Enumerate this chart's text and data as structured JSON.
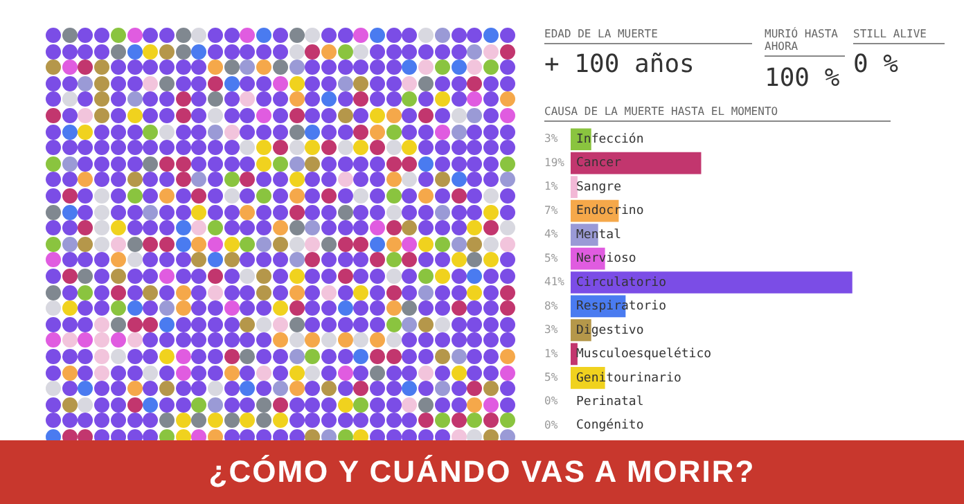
{
  "chart_data": {
    "type": "bar",
    "orientation": "horizontal",
    "title": "¿CÓMO Y CUÁNDO VAS A MORIR?",
    "subtitle": "CAUSA DE LA MUERTE HASTA EL MOMENTO",
    "annotations": [
      "EDAD DE LA MUERTE",
      "+ 100 años",
      "MURIÓ HASTA AHORA",
      "100 %",
      "STILL ALIVE",
      "0 %"
    ],
    "categories": [
      "Infección",
      "Cancer",
      "Sangre",
      "Endocrino",
      "Mental",
      "Nervioso",
      "Circulatorio",
      "Respiratorio",
      "Digestivo",
      "Musculoesquelético",
      "Genitourinario",
      "Perinatal",
      "Congénito"
    ],
    "values": [
      3,
      19,
      1,
      7,
      4,
      5,
      41,
      8,
      3,
      1,
      5,
      0,
      0
    ],
    "colors": [
      "#8ac43f",
      "#c2366e",
      "#f2b8d6",
      "#f5a84a",
      "#9a9ad6",
      "#e05ce0",
      "#7b4de6",
      "#4a7bf0",
      "#b5974a",
      "#c2366e",
      "#f0d21e",
      "#cccccc",
      "#cccccc"
    ],
    "value_labels": [
      "3%",
      "19%",
      "1%",
      "7%",
      "4%",
      "5%",
      "41%",
      "8%",
      "3%",
      "1%",
      "5%",
      "0%",
      "0%"
    ],
    "legend": false
  }
}
